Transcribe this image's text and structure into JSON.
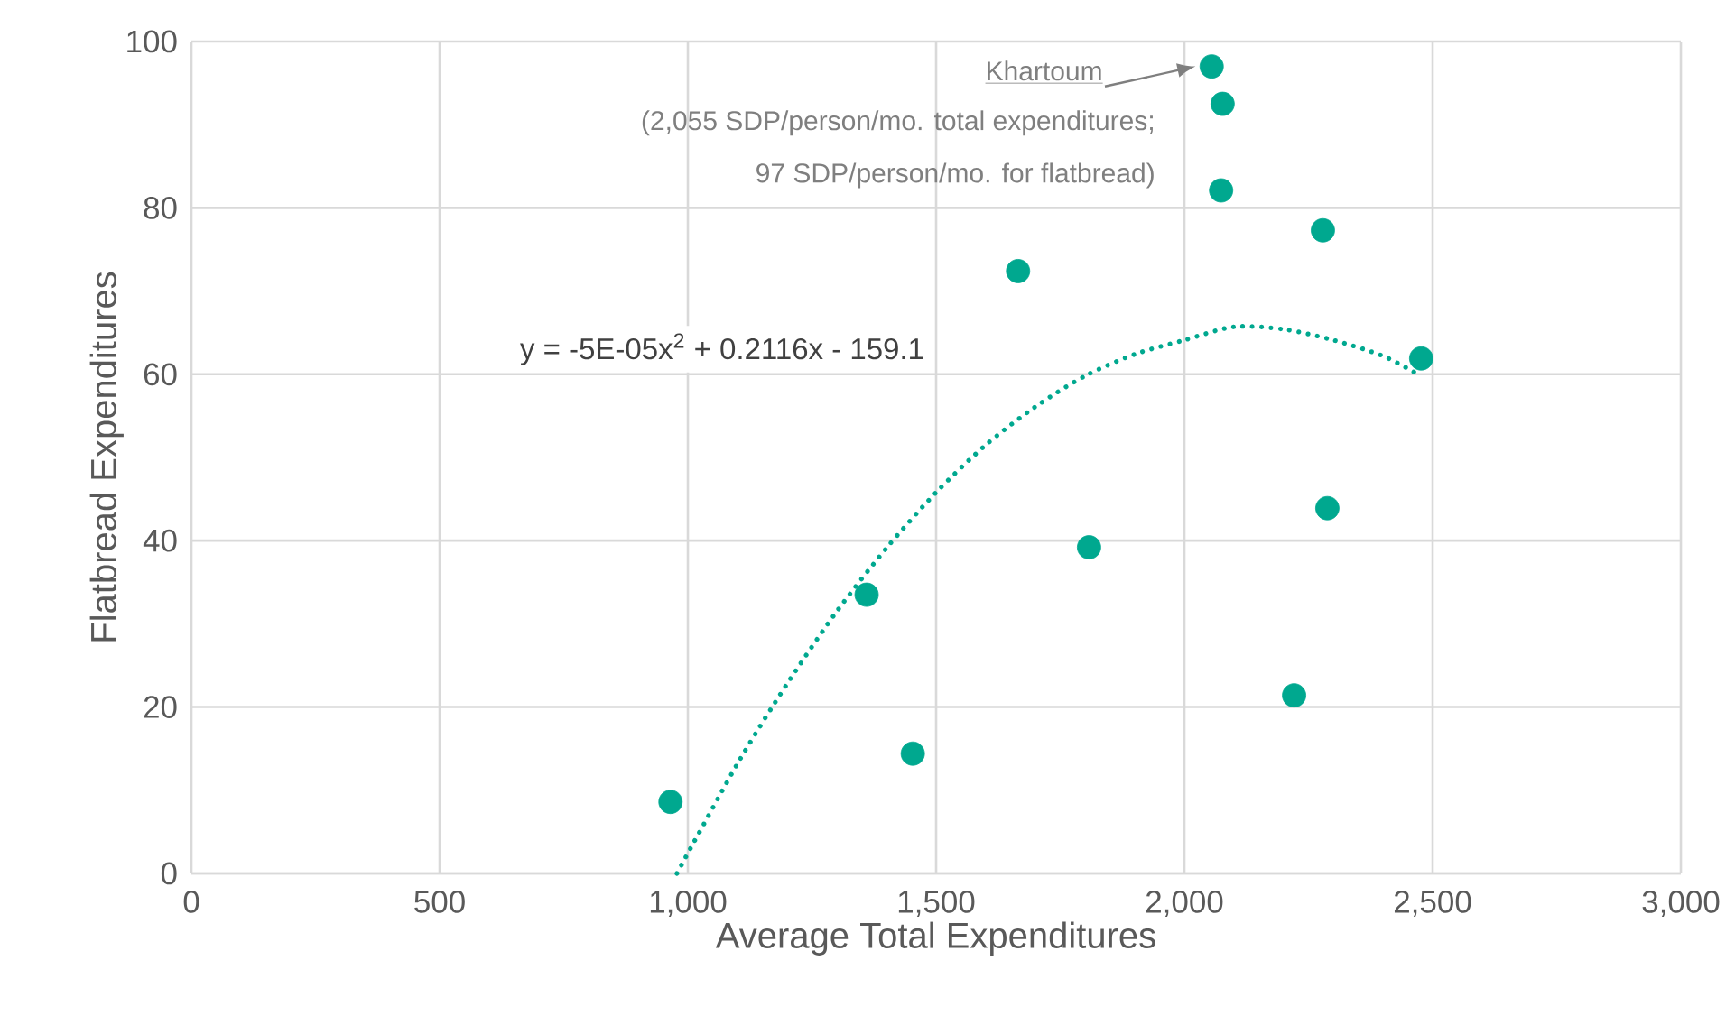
{
  "chart_data": {
    "type": "scatter",
    "xlabel": "Average Total Expenditures",
    "ylabel": "Flatbread Expenditures",
    "xlim": [
      0,
      3000
    ],
    "ylim": [
      0,
      100
    ],
    "xticks": [
      0,
      500,
      {
        "value": 1000,
        "label": "1,000"
      },
      {
        "value": 1500,
        "label": "1,500"
      },
      {
        "value": 2000,
        "label": "2,000"
      },
      {
        "value": 2500,
        "label": "2,500"
      },
      {
        "value": 3000,
        "label": "3,000"
      }
    ],
    "yticks": [
      0,
      20,
      40,
      60,
      80,
      100
    ],
    "grid": true,
    "series": [
      {
        "marker": "circle",
        "color": "#00a88f",
        "x": [
          965,
          1360,
          1453,
          1665,
          1808,
          2055,
          2077,
          2074,
          2221,
          2279,
          2288,
          2477
        ],
        "values": [
          8.6,
          33.5,
          14.4,
          72.4,
          39.2,
          97,
          92.5,
          82.1,
          21.4,
          77.3,
          43.9,
          61.9
        ]
      },
      {
        "type": "line",
        "line_style": "dotted",
        "color": "#00a88f",
        "x": [
          978,
          1100,
          1200,
          1300,
          1400,
          1500,
          1600,
          1700,
          1800,
          1900,
          2000,
          2100,
          2200,
          2300,
          2400,
          2470
        ],
        "values": [
          0,
          13.2,
          22.8,
          31.5,
          39.1,
          45.8,
          51.5,
          56.1,
          59.8,
          62.4,
          64.1,
          65.7,
          65.4,
          64.1,
          62.2,
          60
        ]
      }
    ],
    "annotations": [
      "Khartoum",
      "(2,055 SDP/person/mo. total expenditures;",
      "97 SDP/person/mo. for flatbread)",
      "y = -5E-05x$^{2}$ + 0.2116x - 159.1"
    ]
  }
}
